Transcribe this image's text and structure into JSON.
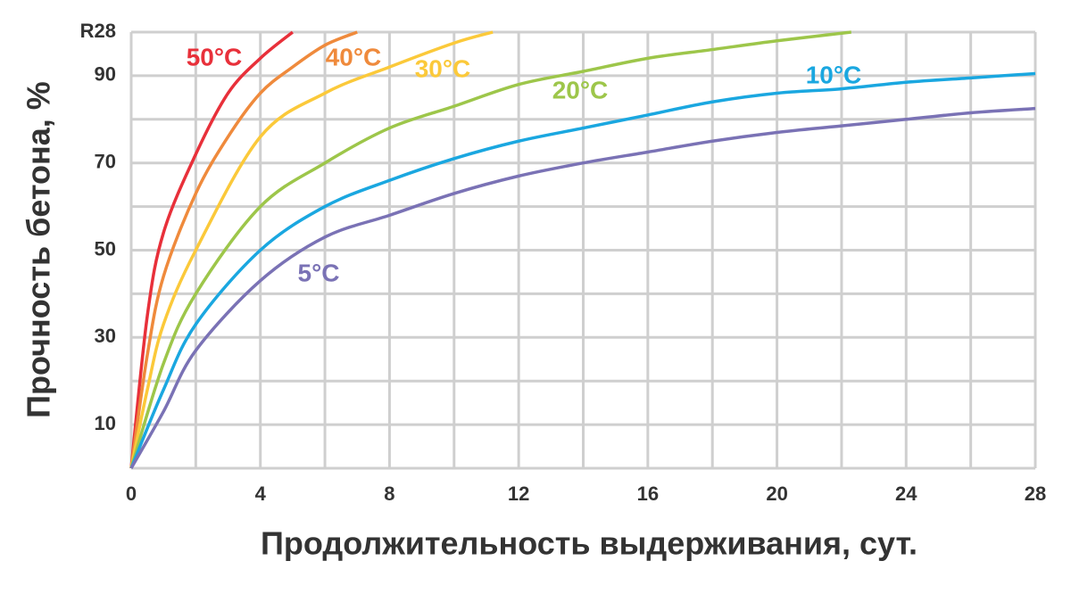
{
  "chart_data": {
    "type": "line",
    "x_label": "Продолжительность выдерживания, сут.",
    "y_label": "Прочность бетона, %",
    "xlim": [
      0,
      28
    ],
    "ylim": [
      0,
      100
    ],
    "xticks": [
      0,
      4,
      8,
      12,
      16,
      20,
      24,
      28
    ],
    "yticks": [
      10,
      30,
      50,
      70,
      90,
      {
        "value": 100,
        "label": "R28"
      }
    ],
    "xgrid": [
      2,
      4,
      6,
      8,
      10,
      12,
      14,
      16,
      18,
      20,
      22,
      24,
      26,
      28
    ],
    "ygrid": [
      10,
      20,
      30,
      40,
      50,
      60,
      70,
      80,
      90,
      100
    ],
    "grid": true,
    "series": [
      {
        "name": "50°C",
        "color": "#e8303a",
        "x": [
          0,
          0.5,
          1,
          2,
          3,
          4,
          5
        ],
        "values": [
          0,
          35,
          54,
          72,
          86,
          94,
          100
        ]
      },
      {
        "name": "40°C",
        "color": "#ef8a3c",
        "x": [
          0,
          0.5,
          1,
          2,
          3,
          4,
          5,
          6,
          7
        ],
        "values": [
          0,
          26,
          44,
          63,
          76,
          86,
          92,
          97,
          100
        ]
      },
      {
        "name": "30°C",
        "color": "#fbc93a",
        "x": [
          0,
          0.5,
          1,
          2,
          4,
          6,
          8,
          10,
          11.2
        ],
        "values": [
          0,
          18,
          33,
          50,
          76,
          86,
          92,
          97.5,
          100
        ]
      },
      {
        "name": "20°C",
        "color": "#9dc64a",
        "x": [
          0,
          1,
          2,
          4,
          6,
          8,
          10,
          12,
          14,
          16,
          18,
          20,
          22.3
        ],
        "values": [
          0,
          24,
          40,
          60,
          70,
          78,
          83,
          88,
          91,
          94,
          96,
          98,
          100
        ]
      },
      {
        "name": "10°C",
        "color": "#1aa7e0",
        "x": [
          0,
          1,
          2,
          4,
          6,
          8,
          10,
          12,
          14,
          16,
          18,
          20,
          22,
          24,
          26,
          28
        ],
        "values": [
          0,
          18,
          33,
          50,
          60,
          66,
          71,
          75,
          78,
          81,
          84,
          86,
          87,
          88.5,
          89.5,
          90.5
        ]
      },
      {
        "name": "5°C",
        "color": "#7a72b5",
        "x": [
          0,
          1,
          2,
          4,
          6,
          8,
          10,
          12,
          14,
          16,
          18,
          20,
          22,
          24,
          26,
          28
        ],
        "values": [
          0,
          13,
          27,
          43,
          53,
          58,
          63,
          67,
          70,
          72.5,
          75,
          77,
          78.5,
          80,
          81.5,
          82.5
        ]
      }
    ]
  }
}
